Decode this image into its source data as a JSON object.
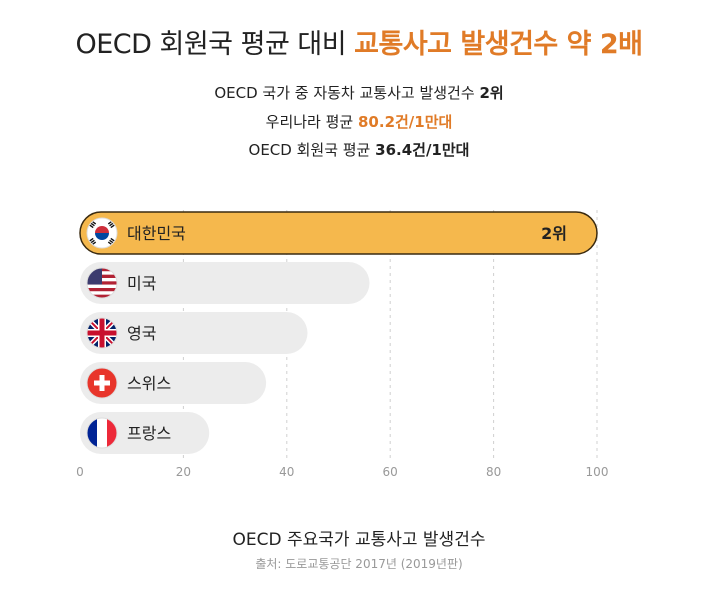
{
  "title": {
    "prefix": "OECD 회원국 평균 대비 ",
    "highlight": "교통사고 발생건수 약 2배"
  },
  "subtitle": {
    "line1_prefix": "OECD 국가 중 자동차 교통사고 발생건수 ",
    "line1_bold": "2위",
    "line2_prefix": "우리나라 평균 ",
    "line2_value": "80.2건/1만대",
    "line3_prefix": "OECD 회원국 평균 ",
    "line3_value": "36.4건/1만대"
  },
  "chart_data": {
    "type": "bar",
    "orientation": "horizontal",
    "categories": [
      "대한민국",
      "미국",
      "영국",
      "스위스",
      "프랑스"
    ],
    "values": [
      100,
      56,
      44,
      36,
      25
    ],
    "bar_labels": [
      "2위",
      "",
      "",
      "",
      ""
    ],
    "xlim": [
      0,
      100
    ],
    "xticks": [
      0,
      20,
      40,
      60,
      80,
      100
    ],
    "grid": true,
    "title": "OECD 주요국가 교통사고 발생건수"
  },
  "colors": {
    "highlight_bar": "#f5b84d",
    "highlight_border": "#3a2a10",
    "bar": "#ececec",
    "accent": "#e07b27",
    "grid": "#d0d0d0"
  },
  "flags": [
    "south-korea-flag-icon",
    "usa-flag-icon",
    "uk-flag-icon",
    "switzerland-flag-icon",
    "france-flag-icon"
  ],
  "source": "출처: 도로교통공단 2017년 (2019년판)"
}
